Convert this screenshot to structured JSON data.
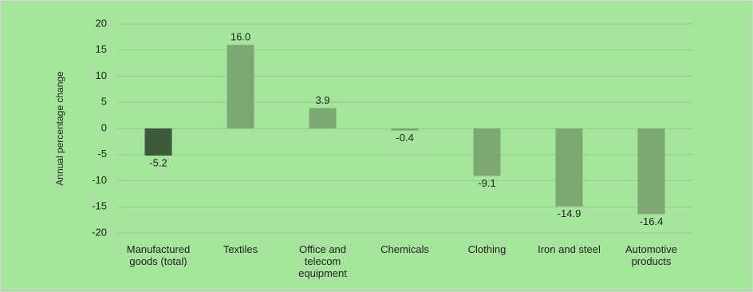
{
  "chart_data": {
    "type": "bar",
    "y_label": "Annual percentage change",
    "categories": [
      "Manufactured goods (total)",
      "Textiles",
      "Office and telecom equipment",
      "Chemicals",
      "Clothing",
      "Iron and steel",
      "Automotive products"
    ],
    "values": [
      -5.2,
      16.0,
      3.9,
      -0.4,
      -9.1,
      -14.9,
      -16.4
    ],
    "value_labels": [
      "-5.2",
      "16.0",
      "3.9",
      "-0.4",
      "-9.1",
      "-14.9",
      "-16.4"
    ],
    "colors": [
      "#3d5a3b",
      "#7ea872",
      "#7ea872",
      "#7ea872",
      "#7ea872",
      "#7ea872",
      "#7ea872"
    ],
    "ylim": [
      -20,
      20
    ],
    "yticks": [
      -20,
      -15,
      -10,
      -5,
      0,
      5,
      10,
      15,
      20
    ],
    "grid": true
  }
}
